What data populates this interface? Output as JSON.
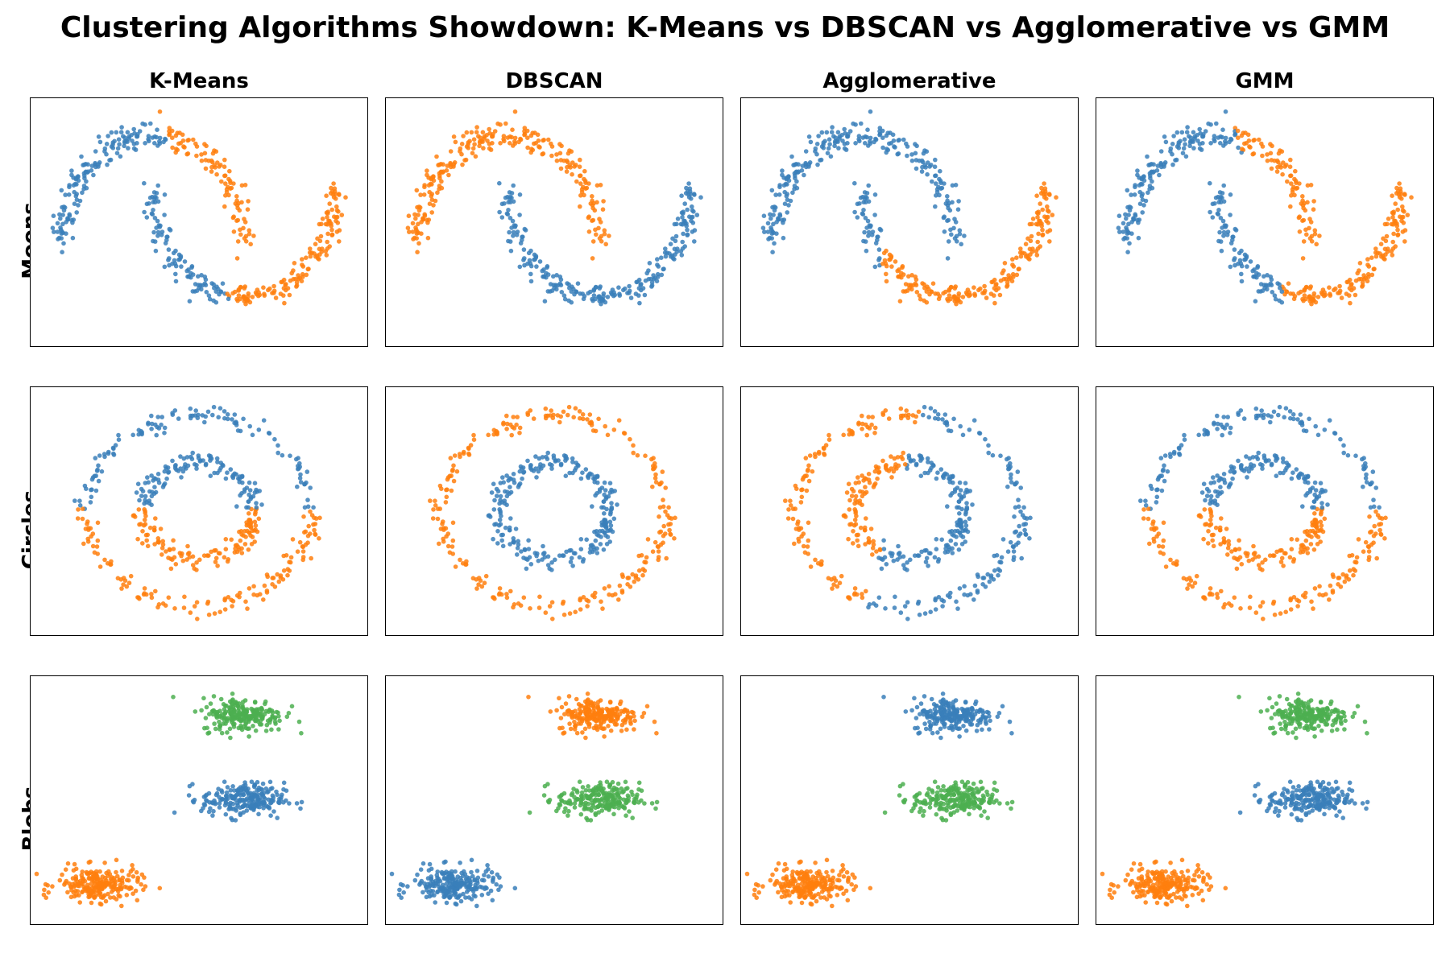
{
  "title": "Clustering Algorithms Showdown: K-Means vs DBSCAN vs Agglomerative vs GMM",
  "colors": {
    "blue": "#3a7fba",
    "orange": "#ff7f0e",
    "green": "#4caf50"
  },
  "chart_data": {
    "type": "scatter",
    "algorithms": [
      "K-Means",
      "DBSCAN",
      "Agglomerative",
      "GMM"
    ],
    "datasets": [
      "Moons",
      "Circles",
      "Blobs"
    ],
    "grid": false,
    "axes_ticks": false,
    "panels": [
      {
        "dataset": "Moons",
        "algorithm": "K-Means",
        "clusters": [
          {
            "label": 0,
            "color": "blue",
            "region": "upper moon + top of lower moon left arm (x < 0.45)"
          },
          {
            "label": 1,
            "color": "orange",
            "region": "lower moon + right tip of upper moon (x > 0.45)"
          }
        ]
      },
      {
        "dataset": "Moons",
        "algorithm": "DBSCAN",
        "clusters": [
          {
            "label": 0,
            "color": "orange",
            "region": "upper moon"
          },
          {
            "label": 1,
            "color": "blue",
            "region": "lower moon"
          }
        ]
      },
      {
        "dataset": "Moons",
        "algorithm": "Agglomerative",
        "clusters": [
          {
            "label": 0,
            "color": "blue",
            "region": "upper moon + left arm of lower moon"
          },
          {
            "label": 1,
            "color": "orange",
            "region": "rest of lower moon"
          }
        ]
      },
      {
        "dataset": "Moons",
        "algorithm": "GMM",
        "clusters": [
          {
            "label": 0,
            "color": "blue",
            "region": "upper moon (except right tip) + top of lower moon"
          },
          {
            "label": 1,
            "color": "orange",
            "region": "lower moon + right tip of upper moon"
          }
        ]
      },
      {
        "dataset": "Circles",
        "algorithm": "K-Means",
        "clusters": [
          {
            "label": 0,
            "color": "blue",
            "region": "upper half of both rings"
          },
          {
            "label": 1,
            "color": "orange",
            "region": "lower half of both rings"
          }
        ]
      },
      {
        "dataset": "Circles",
        "algorithm": "DBSCAN",
        "clusters": [
          {
            "label": 0,
            "color": "orange",
            "region": "outer ring"
          },
          {
            "label": 1,
            "color": "blue",
            "region": "inner ring"
          }
        ]
      },
      {
        "dataset": "Circles",
        "algorithm": "Agglomerative",
        "clusters": [
          {
            "label": 0,
            "color": "orange",
            "region": "left part of both rings"
          },
          {
            "label": 1,
            "color": "blue",
            "region": "right part of both rings"
          }
        ]
      },
      {
        "dataset": "Circles",
        "algorithm": "GMM",
        "clusters": [
          {
            "label": 0,
            "color": "blue",
            "region": "upper half of both rings"
          },
          {
            "label": 1,
            "color": "orange",
            "region": "lower half of both rings"
          }
        ]
      },
      {
        "dataset": "Blobs",
        "algorithm": "K-Means",
        "clusters": [
          {
            "label": 0,
            "color": "orange",
            "center": [
              -6.5,
              -8.5
            ]
          },
          {
            "label": 1,
            "color": "blue",
            "center": [
              0.5,
              -3.0
            ]
          },
          {
            "label": 2,
            "color": "green",
            "center": [
              0.5,
              2.5
            ]
          }
        ]
      },
      {
        "dataset": "Blobs",
        "algorithm": "DBSCAN",
        "clusters": [
          {
            "label": 0,
            "color": "blue",
            "center": [
              -6.5,
              -8.5
            ]
          },
          {
            "label": 1,
            "color": "green",
            "center": [
              0.5,
              -3.0
            ]
          },
          {
            "label": 2,
            "color": "orange",
            "center": [
              0.5,
              2.5
            ]
          }
        ]
      },
      {
        "dataset": "Blobs",
        "algorithm": "Agglomerative",
        "clusters": [
          {
            "label": 0,
            "color": "orange",
            "center": [
              -6.5,
              -8.5
            ]
          },
          {
            "label": 1,
            "color": "green",
            "center": [
              0.5,
              -3.0
            ]
          },
          {
            "label": 2,
            "color": "blue",
            "center": [
              0.5,
              2.5
            ]
          }
        ]
      },
      {
        "dataset": "Blobs",
        "algorithm": "GMM",
        "clusters": [
          {
            "label": 0,
            "color": "orange",
            "center": [
              -6.5,
              -8.5
            ]
          },
          {
            "label": 1,
            "color": "blue",
            "center": [
              0.5,
              -3.0
            ]
          },
          {
            "label": 2,
            "color": "green",
            "center": [
              0.5,
              2.5
            ]
          }
        ]
      }
    ]
  }
}
